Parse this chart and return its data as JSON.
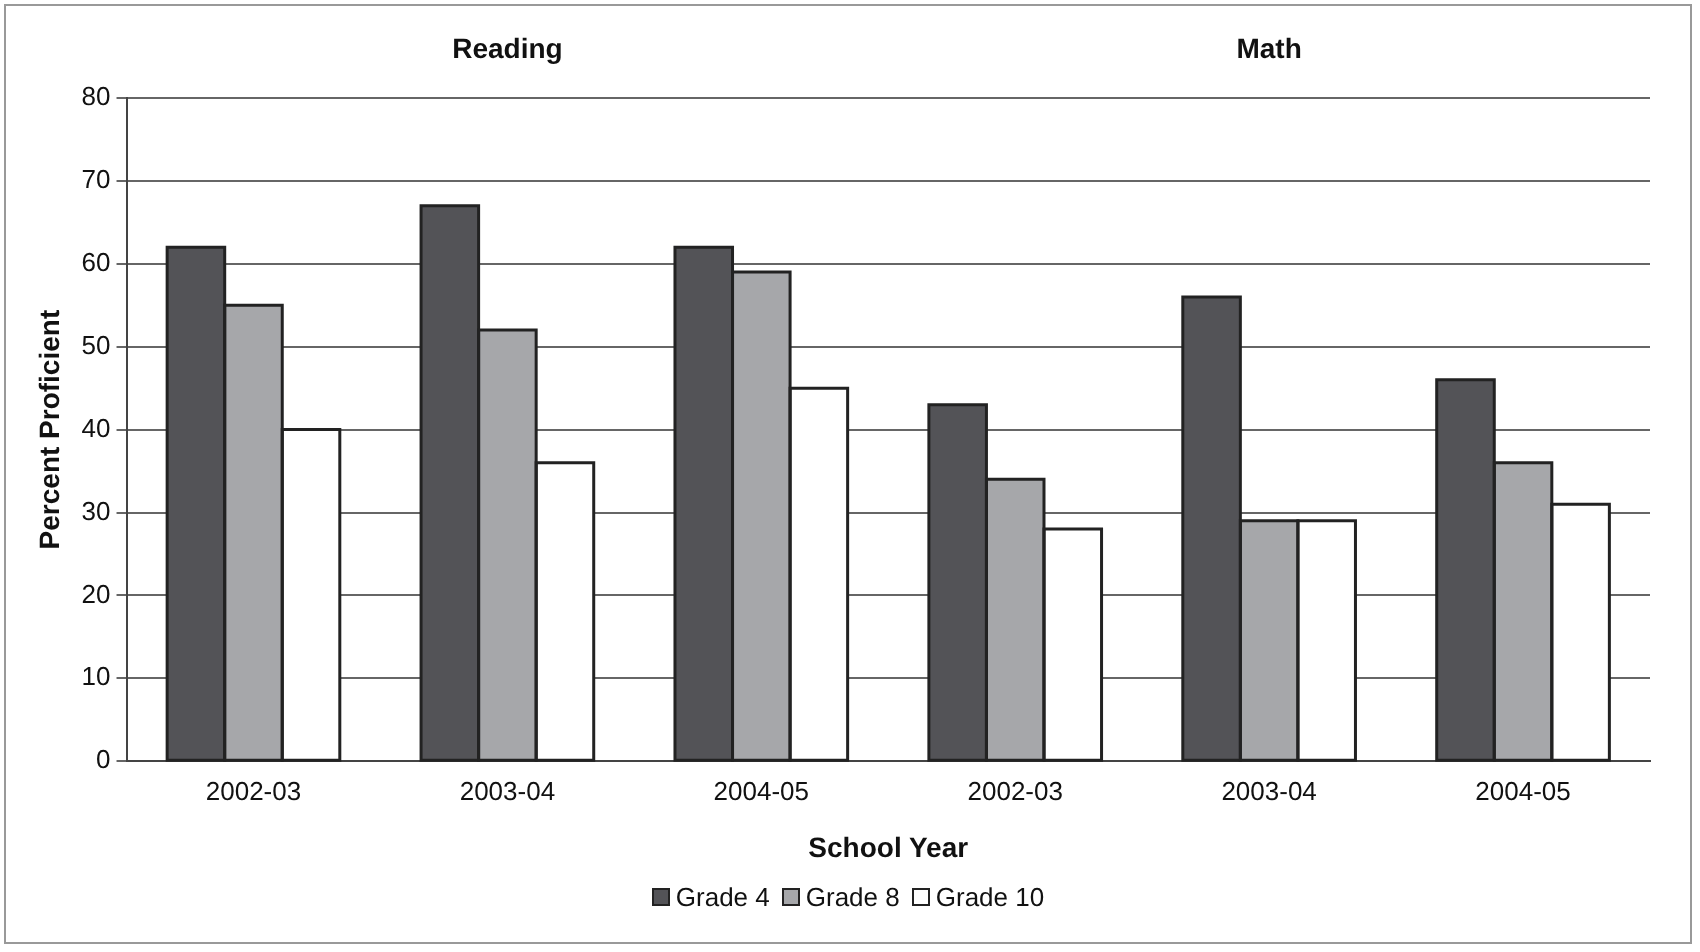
{
  "chart_data": {
    "type": "bar",
    "categories": [
      "2002-03",
      "2003-04",
      "2004-05",
      "2002-03",
      "2003-04",
      "2004-05"
    ],
    "series": [
      {
        "name": "Grade 4",
        "color": "#535357",
        "values": [
          62,
          67,
          62,
          43,
          56,
          46
        ]
      },
      {
        "name": "Grade 8",
        "color": "#a6a7aa",
        "values": [
          55,
          52,
          59,
          34,
          29,
          36
        ]
      },
      {
        "name": "Grade 10",
        "color": "#ffffff",
        "values": [
          40,
          36,
          45,
          28,
          29,
          31
        ]
      }
    ],
    "xlabel": "School Year",
    "ylabel": "Percent Proficient",
    "annotations": [
      "Reading",
      "Math"
    ],
    "ylim": [
      0,
      80
    ],
    "yticks": [
      0,
      10,
      20,
      30,
      40,
      50,
      60,
      70,
      80
    ],
    "grid": "y",
    "legend": "bottom"
  }
}
